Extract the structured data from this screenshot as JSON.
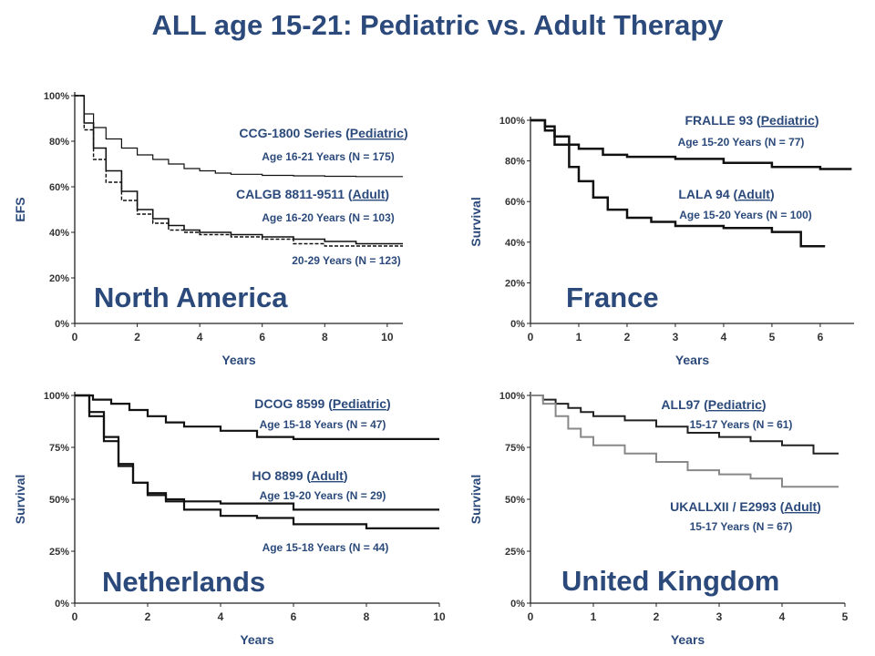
{
  "title": "ALL age 15-21: Pediatric vs. Adult Therapy",
  "chart_data": [
    {
      "type": "line",
      "region": "North America",
      "xlabel": "Years",
      "ylabel": "EFS",
      "xlim": [
        0,
        10.5
      ],
      "ylim": [
        0,
        100
      ],
      "xticks": [
        "0",
        "2",
        "4",
        "6",
        "8",
        "10"
      ],
      "yticks": [
        "0%",
        "20%",
        "40%",
        "60%",
        "80%",
        "100%"
      ],
      "series": [
        {
          "name": "CCG-1800 Series (Pediatric)",
          "x": [
            0,
            0.3,
            0.6,
            1,
            1.5,
            2,
            2.5,
            3,
            3.5,
            4,
            4.5,
            5,
            6,
            7,
            8,
            9,
            10,
            10.5
          ],
          "y": [
            100,
            92,
            86,
            81,
            77,
            74,
            72,
            70,
            68,
            67,
            66,
            65.5,
            65,
            64.8,
            64.6,
            64.5,
            64.5,
            64.5
          ]
        },
        {
          "name": "CALGB 8811-9511 (Adult)",
          "x": [
            0,
            0.3,
            0.6,
            1,
            1.5,
            2,
            2.5,
            3,
            3.5,
            4,
            5,
            6,
            7,
            8,
            9,
            10.5
          ],
          "y": [
            100,
            88,
            77,
            67,
            58,
            50,
            46,
            43,
            41,
            40,
            39,
            38,
            37,
            36,
            35,
            35
          ]
        },
        {
          "name": "20-29 Years (N = 123)",
          "x": [
            0,
            0.3,
            0.6,
            1,
            1.5,
            2,
            2.5,
            3,
            3.5,
            4,
            5,
            6,
            7,
            8,
            9,
            10.5
          ],
          "y": [
            100,
            85,
            72,
            62,
            54,
            48,
            44,
            41,
            40,
            39,
            38,
            37,
            35,
            34,
            34,
            34
          ]
        }
      ],
      "annotations": [
        {
          "name": "CCG-1800 Series (Pediatric)",
          "detail": "Age 16-21 Years (N = 175)"
        },
        {
          "name": "CALGB 8811-9511 (Adult)",
          "detail": "Age 16-20 Years (N = 103)"
        },
        {
          "name": "",
          "detail": "20-29 Years (N = 123)"
        }
      ]
    },
    {
      "type": "line",
      "region": "France",
      "xlabel": "Years",
      "ylabel": "Survival",
      "xlim": [
        0,
        6.7
      ],
      "ylim": [
        0,
        100
      ],
      "xticks": [
        "0",
        "1",
        "2",
        "3",
        "4",
        "5",
        "6"
      ],
      "yticks": [
        "0%",
        "20%",
        "40%",
        "60%",
        "80%",
        "100%"
      ],
      "series": [
        {
          "name": "FRALLE 93 (Pediatric)",
          "x": [
            0,
            0.3,
            0.5,
            0.8,
            1,
            1.5,
            2,
            3,
            4,
            5,
            6,
            6.65
          ],
          "y": [
            100,
            97,
            92,
            88,
            86,
            83,
            82,
            81,
            79,
            77,
            76,
            76
          ]
        },
        {
          "name": "LALA 94 (Adult)",
          "x": [
            0,
            0.3,
            0.5,
            0.8,
            1,
            1.3,
            1.6,
            2,
            2.5,
            3,
            4,
            5,
            5.6,
            6.1
          ],
          "y": [
            100,
            95,
            88,
            77,
            70,
            62,
            56,
            52,
            50,
            48,
            47,
            45,
            38,
            38
          ]
        }
      ],
      "annotations": [
        {
          "name": "FRALLE 93 (Pediatric)",
          "detail": "Age 15-20 Years (N = 77)"
        },
        {
          "name": "LALA 94 (Adult)",
          "detail": "Age 15-20 Years (N = 100)"
        }
      ]
    },
    {
      "type": "line",
      "region": "Netherlands",
      "xlabel": "Years",
      "ylabel": "Survival",
      "xlim": [
        0,
        10
      ],
      "ylim": [
        0,
        100
      ],
      "xticks": [
        "0",
        "2",
        "4",
        "6",
        "8",
        "10"
      ],
      "yticks": [
        "0%",
        "25%",
        "50%",
        "75%",
        "100%"
      ],
      "series": [
        {
          "name": "DCOG 8599 (Pediatric)",
          "x": [
            0,
            0.5,
            1,
            1.5,
            2,
            2.5,
            3,
            4,
            5,
            6,
            8,
            10
          ],
          "y": [
            100,
            98,
            96,
            93,
            90,
            87,
            85,
            83,
            80,
            79,
            79,
            79
          ]
        },
        {
          "name": "HO 8899 (Adult)",
          "x": [
            0,
            0.4,
            0.8,
            1.2,
            1.6,
            2,
            2.5,
            3,
            4,
            5,
            6,
            8,
            10
          ],
          "y": [
            100,
            92,
            80,
            67,
            58,
            53,
            50,
            49,
            48,
            48,
            45,
            45,
            45
          ]
        },
        {
          "name": "Age 15-18 Years (N = 44)",
          "x": [
            0,
            0.4,
            0.8,
            1.2,
            1.6,
            2,
            2.5,
            3,
            4,
            5,
            6,
            8,
            10
          ],
          "y": [
            100,
            90,
            78,
            66,
            58,
            52,
            49,
            45,
            42,
            41,
            38,
            36,
            36
          ]
        }
      ],
      "annotations": [
        {
          "name": "DCOG 8599 (Pediatric)",
          "detail": "Age 15-18 Years (N = 47)"
        },
        {
          "name": "HO 8899 (Adult)",
          "detail": "Age 19-20 Years (N = 29)"
        },
        {
          "name": "",
          "detail": "Age 15-18 Years (N = 44)"
        }
      ]
    },
    {
      "type": "line",
      "region": "United Kingdom",
      "xlabel": "Years",
      "ylabel": "Survival",
      "xlim": [
        0,
        5
      ],
      "ylim": [
        0,
        100
      ],
      "xticks": [
        "0",
        "1",
        "2",
        "3",
        "4",
        "5"
      ],
      "yticks": [
        "0%",
        "25%",
        "50%",
        "75%",
        "100%"
      ],
      "series": [
        {
          "name": "ALL97 (Pediatric)",
          "x": [
            0,
            0.2,
            0.4,
            0.6,
            0.8,
            1,
            1.5,
            2,
            2.5,
            3,
            3.5,
            4,
            4.5,
            4.9
          ],
          "y": [
            100,
            98,
            96,
            94,
            92,
            90,
            88,
            85,
            82,
            80,
            78,
            76,
            72,
            72
          ]
        },
        {
          "name": "UKALLXII / E2993 (Adult)",
          "x": [
            0,
            0.2,
            0.4,
            0.6,
            0.8,
            1,
            1.5,
            2,
            2.5,
            3,
            3.5,
            4,
            4.5,
            4.9
          ],
          "y": [
            100,
            96,
            90,
            84,
            80,
            76,
            72,
            68,
            64,
            62,
            60,
            56,
            56,
            56
          ]
        }
      ],
      "annotations": [
        {
          "name": "ALL97 (Pediatric)",
          "detail": "15-17 Years (N = 61)"
        },
        {
          "name": "UKALLXII / E2993 (Adult)",
          "detail": "15-17 Years (N = 67)"
        }
      ]
    }
  ]
}
